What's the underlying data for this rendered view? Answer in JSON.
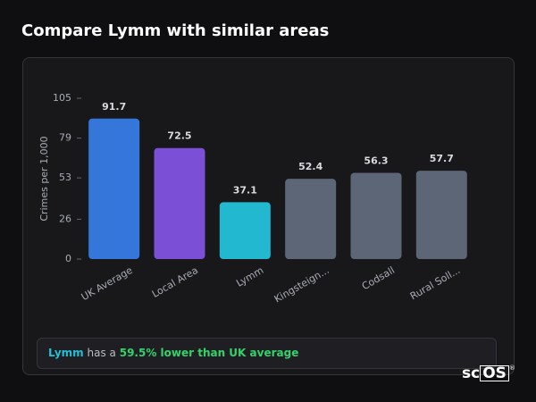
{
  "chart_data": {
    "type": "bar",
    "title": "Compare Lymm with similar areas",
    "y_label": "Crimes per 1,000",
    "categories": [
      "UK Average",
      "Local Area",
      "Lymm",
      "Kingsteign...",
      "Codsall",
      "Rural Soll..."
    ],
    "values": [
      91.7,
      72.5,
      37.1,
      52.4,
      56.3,
      57.7
    ],
    "colors": [
      "#3576da",
      "#7b4fd6",
      "#22b8d0",
      "#5c6677",
      "#5c6677",
      "#5c6677"
    ],
    "ylim": [
      0,
      105
    ],
    "yticks": [
      0,
      26,
      53,
      79,
      105
    ]
  },
  "summary": {
    "area": "Lymm",
    "text": "has a",
    "comparison": "59.5% lower than UK average"
  },
  "logo": {
    "prefix": "sc",
    "boxed": "OS",
    "mark": "®"
  }
}
